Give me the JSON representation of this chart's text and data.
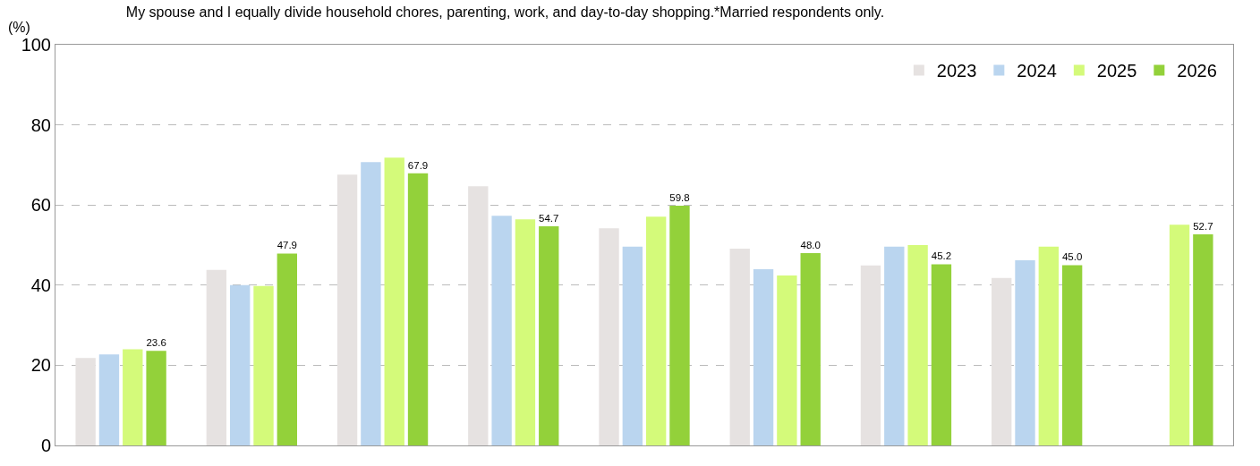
{
  "chart_data": {
    "type": "bar",
    "title": "My spouse and I equally divide household chores, parenting, work, and day-to-day shopping.*Married respondents only.",
    "ylabel": "(%)",
    "categories": [
      null,
      null,
      null,
      null,
      null,
      null,
      null,
      null,
      null
    ],
    "series": [
      {
        "name": "2023",
        "color": "#e6e2e1",
        "values": [
          21.8,
          43.8,
          67.6,
          64.7,
          54.2,
          49.1,
          44.9,
          41.8,
          null
        ]
      },
      {
        "name": "2024",
        "color": "#bad5ef",
        "values": [
          22.7,
          40.0,
          70.7,
          57.3,
          49.6,
          44.0,
          49.6,
          46.2,
          null
        ]
      },
      {
        "name": "2025",
        "color": "#d4fa7a",
        "values": [
          24.0,
          39.8,
          71.8,
          56.4,
          57.1,
          42.4,
          50.0,
          49.6,
          55.1
        ]
      },
      {
        "name": "2026",
        "color": "#93d13a",
        "values": [
          23.6,
          47.9,
          67.9,
          54.7,
          59.8,
          48.0,
          45.2,
          45.0,
          52.7
        ],
        "value_labels": [
          "23.6",
          "47.9",
          "67.9",
          "54.7",
          "59.8",
          "48.0",
          "45.2",
          "45.0",
          "52.7"
        ]
      }
    ],
    "ylim": [
      0,
      100
    ],
    "yticks": [
      0,
      20,
      40,
      60,
      80,
      100
    ],
    "grid": "y",
    "legend": "top right"
  }
}
